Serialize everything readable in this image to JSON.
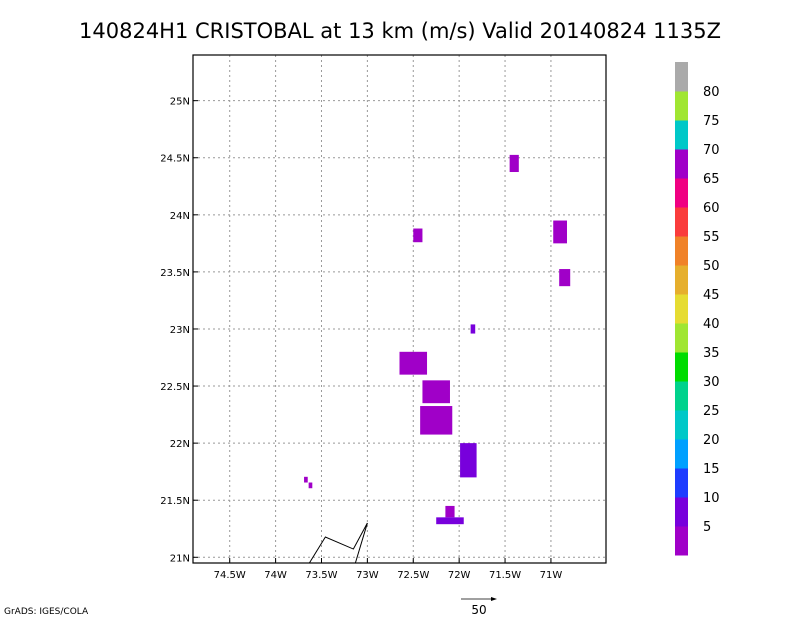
{
  "chart_data": {
    "type": "heatmap",
    "title": "140824H1 CRISTOBAL at 13 km (m/s) Valid 20140824 1135Z",
    "xlabel": "",
    "ylabel": "",
    "xlim": [
      -74.9,
      -70.4
    ],
    "ylim": [
      20.95,
      25.4
    ],
    "x_ticks": [
      {
        "value": -74.5,
        "label": "74.5W"
      },
      {
        "value": -74.0,
        "label": "74W"
      },
      {
        "value": -73.5,
        "label": "73.5W"
      },
      {
        "value": -73.0,
        "label": "73W"
      },
      {
        "value": -72.5,
        "label": "72.5W"
      },
      {
        "value": -72.0,
        "label": "72W"
      },
      {
        "value": -71.5,
        "label": "71.5W"
      },
      {
        "value": -71.0,
        "label": "71W"
      }
    ],
    "y_ticks": [
      {
        "value": 21.0,
        "label": "21N"
      },
      {
        "value": 21.5,
        "label": "21.5N"
      },
      {
        "value": 22.0,
        "label": "22N"
      },
      {
        "value": 22.5,
        "label": "22.5N"
      },
      {
        "value": 23.0,
        "label": "23N"
      },
      {
        "value": 23.5,
        "label": "23.5N"
      },
      {
        "value": 24.0,
        "label": "24N"
      },
      {
        "value": 24.5,
        "label": "24.5N"
      },
      {
        "value": 25.0,
        "label": "25N"
      }
    ],
    "grid": true,
    "colorbar": {
      "labels": [
        "5",
        "10",
        "15",
        "20",
        "25",
        "30",
        "35",
        "40",
        "45",
        "50",
        "55",
        "60",
        "65",
        "70",
        "75",
        "80"
      ],
      "colors": [
        "#a000c8",
        "#7800dc",
        "#1e3cff",
        "#00a0ff",
        "#00c8c8",
        "#00d28c",
        "#00dc00",
        "#a0e632",
        "#e6dc32",
        "#e6af2d",
        "#f08228",
        "#fa3c3c",
        "#f00082",
        "#a000c8",
        "#00c8c8",
        "#a0e632",
        "#aaaaaa"
      ]
    },
    "cells": [
      {
        "lon": -71.4,
        "lat": 24.45,
        "w": 0.1,
        "h": 0.15,
        "value": 3
      },
      {
        "lon": -72.45,
        "lat": 23.82,
        "w": 0.1,
        "h": 0.12,
        "value": 3
      },
      {
        "lon": -70.9,
        "lat": 23.85,
        "w": 0.15,
        "h": 0.2,
        "value": 3
      },
      {
        "lon": -70.85,
        "lat": 23.45,
        "w": 0.12,
        "h": 0.15,
        "value": 3
      },
      {
        "lon": -71.85,
        "lat": 23.0,
        "w": 0.05,
        "h": 0.08,
        "value": 8
      },
      {
        "lon": -72.5,
        "lat": 22.7,
        "w": 0.3,
        "h": 0.2,
        "value": 3
      },
      {
        "lon": -72.25,
        "lat": 22.45,
        "w": 0.3,
        "h": 0.2,
        "value": 4
      },
      {
        "lon": -72.25,
        "lat": 22.2,
        "w": 0.35,
        "h": 0.25,
        "value": 3
      },
      {
        "lon": -71.9,
        "lat": 21.85,
        "w": 0.18,
        "h": 0.3,
        "value": 5
      },
      {
        "lon": -72.1,
        "lat": 21.4,
        "w": 0.1,
        "h": 0.1,
        "value": 3
      },
      {
        "lon": -72.1,
        "lat": 21.32,
        "w": 0.3,
        "h": 0.06,
        "value": 9
      },
      {
        "lon": -73.67,
        "lat": 21.68,
        "w": 0.04,
        "h": 0.05,
        "value": 3
      },
      {
        "lon": -73.62,
        "lat": 21.63,
        "w": 0.04,
        "h": 0.05,
        "value": 3
      }
    ],
    "wind_barb": {
      "lon": -73.0,
      "lat": 21.3
    },
    "reference_vector": {
      "label": "50"
    }
  },
  "footer": {
    "credit": "GrADS: IGES/COLA"
  }
}
